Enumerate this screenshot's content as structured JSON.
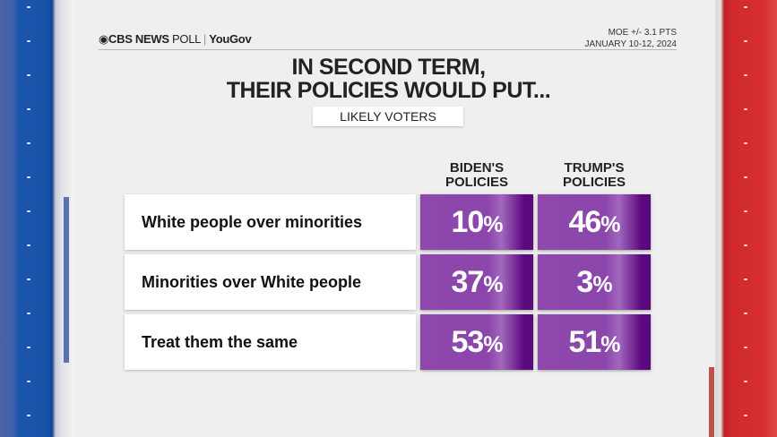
{
  "brand": {
    "cbs": "CBS NEWS",
    "poll": "POLL",
    "partner": "YouGov"
  },
  "moe": "MOE +/- 3.1 PTS",
  "dates": "JANUARY 10-12, 2024",
  "title_line1": "IN SECOND TERM,",
  "title_line2": "THEIR POLICIES WOULD PUT...",
  "subtitle": "LIKELY VOTERS",
  "colors": {
    "cell": "#8b46ab",
    "cell_dark": "#580a7d",
    "left_stripe": "#1452a8",
    "right_stripe": "#d12a2e"
  },
  "chart_data": {
    "type": "table",
    "title": "IN SECOND TERM, THEIR POLICIES WOULD PUT...",
    "subtitle": "LIKELY VOTERS",
    "columns": [
      {
        "l1": "BIDEN'S",
        "l2": "POLICIES"
      },
      {
        "l1": "TRUMP'S",
        "l2": "POLICIES"
      }
    ],
    "rows": [
      {
        "label": "White people over minorities",
        "values": [
          10,
          46
        ]
      },
      {
        "label": "Minorities over White people",
        "values": [
          37,
          3
        ]
      },
      {
        "label": "Treat them the same",
        "values": [
          53,
          51
        ]
      }
    ],
    "unit": "%"
  }
}
